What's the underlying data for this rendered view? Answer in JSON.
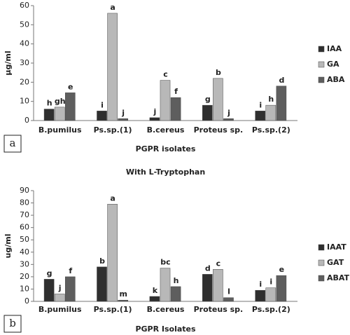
{
  "chart_data": [
    {
      "type": "bar",
      "panel_label": "a",
      "y_label": "µg/ml",
      "x_label": "PGPR isolates",
      "categories": [
        "B.pumilus",
        "Ps.sp.(1)",
        "B.cereus",
        "Proteus sp.",
        "Ps.sp.(2)"
      ],
      "series": [
        {
          "name": "IAA",
          "color": "#2f2f2f",
          "values": [
            6,
            5,
            1.5,
            8,
            5
          ],
          "labels": [
            "h",
            "i",
            "j",
            "g",
            "i"
          ]
        },
        {
          "name": "GA",
          "color": "#b8b8b8",
          "values": [
            7,
            56,
            21,
            22,
            8
          ],
          "labels": [
            "gh",
            "a",
            "c",
            "b",
            "h"
          ]
        },
        {
          "name": "ABA",
          "color": "#5e5e5e",
          "values": [
            14.5,
            1,
            12,
            1,
            18
          ],
          "labels": [
            "e",
            "j",
            "f",
            "j",
            "d"
          ]
        }
      ],
      "ylim": [
        0,
        60
      ],
      "yticks": [
        0,
        10,
        20,
        30,
        40,
        50,
        60
      ],
      "legend": "right"
    },
    {
      "type": "bar",
      "panel_label": "b",
      "title": "With L-Tryptophan",
      "y_label": "ug/ml",
      "x_label": "PGPR Isolates",
      "categories": [
        "B.pumilus",
        "Ps.sp.(1)",
        "B.cereus",
        "Proteus sp.",
        "Ps.sp.(2)"
      ],
      "series": [
        {
          "name": "IAAT",
          "color": "#2f2f2f",
          "values": [
            18,
            28,
            4,
            22,
            9
          ],
          "labels": [
            "g",
            "b",
            "k",
            "d",
            "i"
          ]
        },
        {
          "name": "GAT",
          "color": "#b8b8b8",
          "values": [
            6,
            79,
            27,
            26,
            11
          ],
          "labels": [
            "j",
            "a",
            "bc",
            "c",
            "i"
          ]
        },
        {
          "name": "ABAT",
          "color": "#5e5e5e",
          "values": [
            20,
            1,
            12,
            3,
            21
          ],
          "labels": [
            "f",
            "m",
            "h",
            "l",
            "e"
          ]
        }
      ],
      "ylim": [
        0,
        90
      ],
      "yticks": [
        0,
        10,
        20,
        30,
        40,
        50,
        60,
        70,
        80,
        90
      ],
      "legend": "right"
    }
  ]
}
